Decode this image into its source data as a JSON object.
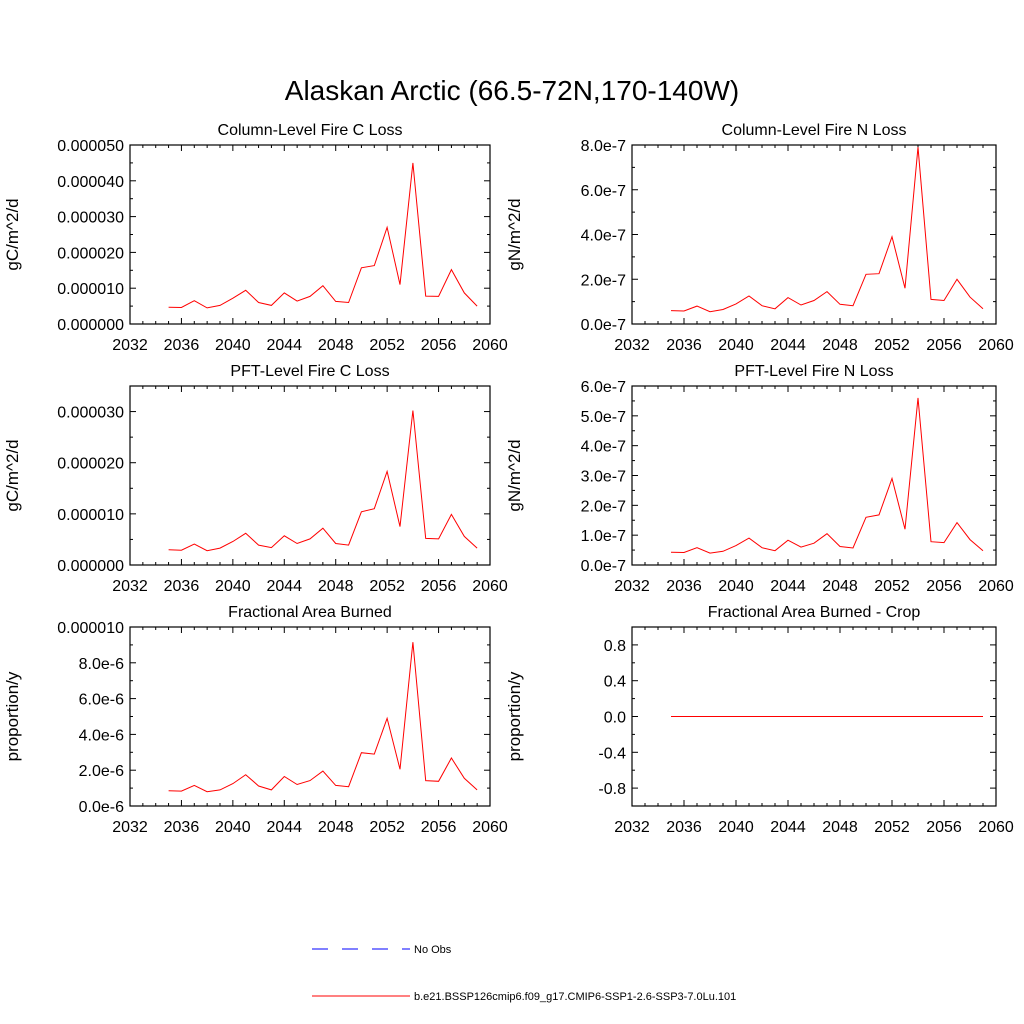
{
  "main_title": "Alaskan Arctic (66.5-72N,170-140W)",
  "colors": {
    "model": "#ff0000",
    "obs": "#0000ff",
    "axis": "#000000"
  },
  "legend": {
    "obs_label": "No Obs",
    "model_label": "b.e21.BSSP126cmip6.f09_g17.CMIP6-SSP1-2.6-SSP3-7.0Lu.101"
  },
  "chart_data": [
    {
      "type": "line",
      "title": "Column-Level Fire C Loss",
      "ylabel": "gC/m^2/d",
      "xlim": [
        2032,
        2060
      ],
      "xticks": [
        "2032",
        "2036",
        "2040",
        "2044",
        "2048",
        "2052",
        "2056",
        "2060"
      ],
      "ylim": [
        0,
        5e-05
      ],
      "yticks": [
        0,
        1e-05,
        2e-05,
        3e-05,
        4e-05,
        5e-05
      ],
      "ytick_labels": [
        "0.000000",
        "0.000010",
        "0.000020",
        "0.000030",
        "0.000040",
        "0.000050"
      ],
      "x": [
        2035,
        2036,
        2037,
        2038,
        2039,
        2040,
        2041,
        2042,
        2043,
        2044,
        2045,
        2046,
        2047,
        2048,
        2049,
        2050,
        2051,
        2052,
        2053,
        2054,
        2055,
        2056,
        2057,
        2058,
        2059
      ],
      "series": [
        {
          "values": [
            4.7e-06,
            4.6e-06,
            6.5e-06,
            4.5e-06,
            5.2e-06,
            7.2e-06,
            9.4e-06,
            6e-06,
            5.2e-06,
            8.7e-06,
            6.4e-06,
            7.7e-06,
            1.07e-05,
            6.3e-06,
            6e-06,
            1.57e-05,
            1.63e-05,
            2.7e-05,
            1.1e-05,
            4.5e-05,
            7.8e-06,
            7.7e-06,
            1.52e-05,
            8.7e-06,
            5e-06
          ]
        }
      ]
    },
    {
      "type": "line",
      "title": "Column-Level Fire N Loss",
      "ylabel": "gN/m^2/d",
      "xlim": [
        2032,
        2060
      ],
      "xticks": [
        "2032",
        "2036",
        "2040",
        "2044",
        "2048",
        "2052",
        "2056",
        "2060"
      ],
      "ylim": [
        0,
        8e-07
      ],
      "yticks": [
        0,
        2e-07,
        4e-07,
        6e-07,
        8e-07
      ],
      "ytick_labels": [
        "0.0e-7",
        "2.0e-7",
        "4.0e-7",
        "6.0e-7",
        "8.0e-7"
      ],
      "x": [
        2035,
        2036,
        2037,
        2038,
        2039,
        2040,
        2041,
        2042,
        2043,
        2044,
        2045,
        2046,
        2047,
        2048,
        2049,
        2050,
        2051,
        2052,
        2053,
        2054,
        2055,
        2056,
        2057,
        2058,
        2059
      ],
      "series": [
        {
          "values": [
            6e-08,
            5.8e-08,
            8e-08,
            5.5e-08,
            6.5e-08,
            9e-08,
            1.25e-07,
            8.2e-08,
            6.8e-08,
            1.18e-07,
            8.5e-08,
            1.05e-07,
            1.45e-07,
            8.8e-08,
            8.2e-08,
            2.22e-07,
            2.25e-07,
            3.9e-07,
            1.6e-07,
            7.9e-07,
            1.1e-07,
            1.05e-07,
            2e-07,
            1.2e-07,
            6.8e-08
          ]
        }
      ]
    },
    {
      "type": "line",
      "title": "PFT-Level Fire C Loss",
      "ylabel": "gC/m^2/d",
      "xlim": [
        2032,
        2060
      ],
      "xticks": [
        "2032",
        "2036",
        "2040",
        "2044",
        "2048",
        "2052",
        "2056",
        "2060"
      ],
      "ylim": [
        0,
        3.5e-05
      ],
      "yticks": [
        0,
        1e-05,
        2e-05,
        3e-05
      ],
      "ytick_labels": [
        "0.000000",
        "0.000010",
        "0.000020",
        "0.000030"
      ],
      "x": [
        2035,
        2036,
        2037,
        2038,
        2039,
        2040,
        2041,
        2042,
        2043,
        2044,
        2045,
        2046,
        2047,
        2048,
        2049,
        2050,
        2051,
        2052,
        2053,
        2054,
        2055,
        2056,
        2057,
        2058,
        2059
      ],
      "series": [
        {
          "values": [
            3e-06,
            2.9e-06,
            4.1e-06,
            2.8e-06,
            3.3e-06,
            4.6e-06,
            6.2e-06,
            3.9e-06,
            3.4e-06,
            5.7e-06,
            4.2e-06,
            5.1e-06,
            7.2e-06,
            4.2e-06,
            3.9e-06,
            1.04e-05,
            1.1e-05,
            1.83e-05,
            7.5e-06,
            3.02e-05,
            5.2e-06,
            5.1e-06,
            9.9e-06,
            5.6e-06,
            3.3e-06
          ]
        }
      ]
    },
    {
      "type": "line",
      "title": "PFT-Level Fire N Loss",
      "ylabel": "gN/m^2/d",
      "xlim": [
        2032,
        2060
      ],
      "xticks": [
        "2032",
        "2036",
        "2040",
        "2044",
        "2048",
        "2052",
        "2056",
        "2060"
      ],
      "ylim": [
        0,
        6e-07
      ],
      "yticks": [
        0,
        1e-07,
        2e-07,
        3e-07,
        4e-07,
        5e-07,
        6e-07
      ],
      "ytick_labels": [
        "0.0e-7",
        "1.0e-7",
        "2.0e-7",
        "3.0e-7",
        "4.0e-7",
        "5.0e-7",
        "6.0e-7"
      ],
      "x": [
        2035,
        2036,
        2037,
        2038,
        2039,
        2040,
        2041,
        2042,
        2043,
        2044,
        2045,
        2046,
        2047,
        2048,
        2049,
        2050,
        2051,
        2052,
        2053,
        2054,
        2055,
        2056,
        2057,
        2058,
        2059
      ],
      "series": [
        {
          "values": [
            4.3e-08,
            4.2e-08,
            5.8e-08,
            4e-08,
            4.6e-08,
            6.5e-08,
            9e-08,
            5.8e-08,
            4.8e-08,
            8.3e-08,
            6e-08,
            7.3e-08,
            1.05e-07,
            6.2e-08,
            5.7e-08,
            1.6e-07,
            1.68e-07,
            2.9e-07,
            1.2e-07,
            5.6e-07,
            7.8e-08,
            7.5e-08,
            1.42e-07,
            8.5e-08,
            4.8e-08
          ]
        }
      ]
    },
    {
      "type": "line",
      "title": "Fractional Area Burned",
      "ylabel": "proportion/y",
      "xlim": [
        2032,
        2060
      ],
      "xticks": [
        "2032",
        "2036",
        "2040",
        "2044",
        "2048",
        "2052",
        "2056",
        "2060"
      ],
      "ylim": [
        0,
        1e-05
      ],
      "yticks": [
        0,
        2e-06,
        4e-06,
        6e-06,
        8e-06,
        1e-05
      ],
      "ytick_labels": [
        "0.0e-6",
        "2.0e-6",
        "4.0e-6",
        "6.0e-6",
        "8.0e-6",
        "0.000010"
      ],
      "x": [
        2035,
        2036,
        2037,
        2038,
        2039,
        2040,
        2041,
        2042,
        2043,
        2044,
        2045,
        2046,
        2047,
        2048,
        2049,
        2050,
        2051,
        2052,
        2053,
        2054,
        2055,
        2056,
        2057,
        2058,
        2059
      ],
      "series": [
        {
          "values": [
            8.5e-07,
            8.3e-07,
            1.15e-06,
            8e-07,
            9e-07,
            1.25e-06,
            1.75e-06,
            1.12e-06,
            9e-07,
            1.65e-06,
            1.2e-06,
            1.42e-06,
            1.95e-06,
            1.15e-06,
            1.08e-06,
            2.98e-06,
            2.9e-06,
            4.9e-06,
            2.05e-06,
            9.15e-06,
            1.42e-06,
            1.38e-06,
            2.68e-06,
            1.55e-06,
            9e-07
          ]
        }
      ]
    },
    {
      "type": "line",
      "title": "Fractional Area Burned - Crop",
      "ylabel": "proportion/y",
      "xlim": [
        2032,
        2060
      ],
      "xticks": [
        "2032",
        "2036",
        "2040",
        "2044",
        "2048",
        "2052",
        "2056",
        "2060"
      ],
      "ylim": [
        -1,
        1
      ],
      "yticks": [
        -0.8,
        -0.4,
        0.0,
        0.4,
        0.8
      ],
      "ytick_labels": [
        "-0.8",
        "-0.4",
        "0.0",
        "0.4",
        "0.8"
      ],
      "x": [
        2035,
        2036,
        2037,
        2038,
        2039,
        2040,
        2041,
        2042,
        2043,
        2044,
        2045,
        2046,
        2047,
        2048,
        2049,
        2050,
        2051,
        2052,
        2053,
        2054,
        2055,
        2056,
        2057,
        2058,
        2059
      ],
      "series": [
        {
          "values": [
            0,
            0,
            0,
            0,
            0,
            0,
            0,
            0,
            0,
            0,
            0,
            0,
            0,
            0,
            0,
            0,
            0,
            0,
            0,
            0,
            0,
            0,
            0,
            0,
            0
          ]
        }
      ]
    }
  ]
}
